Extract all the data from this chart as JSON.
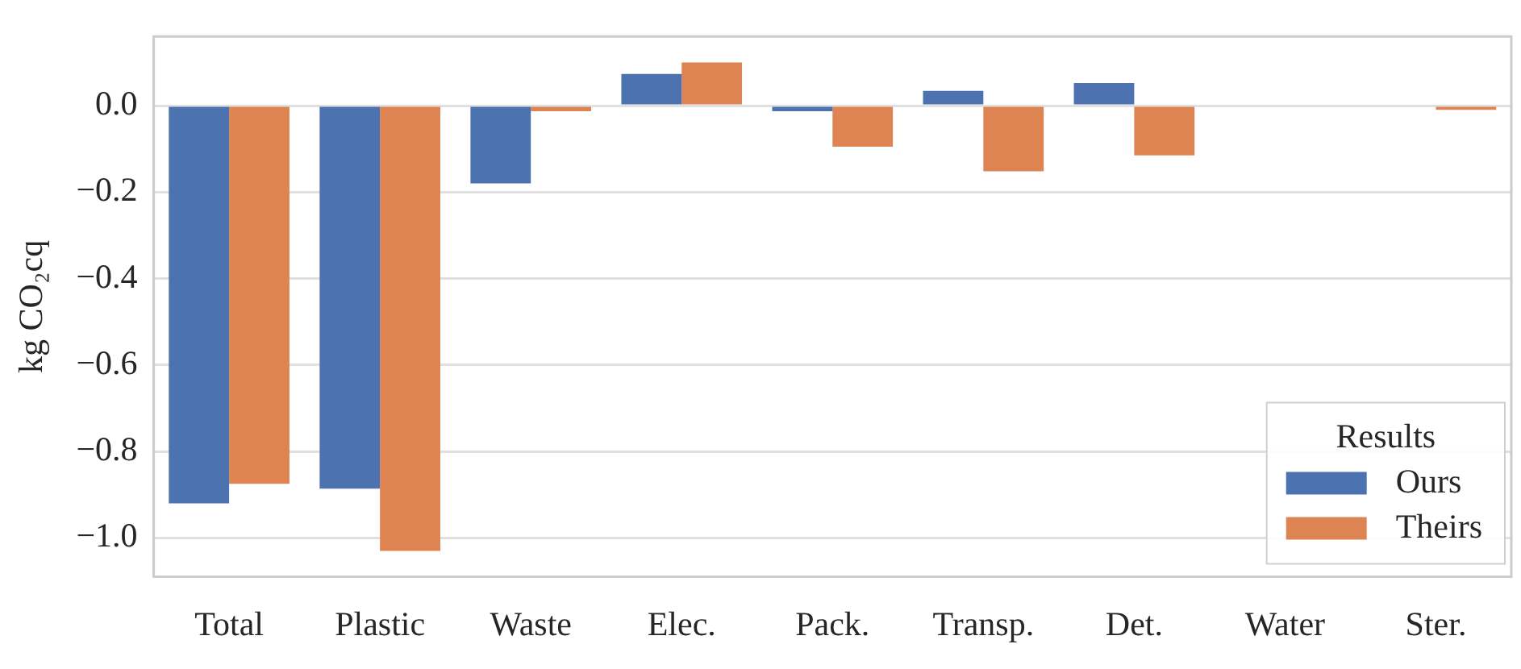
{
  "chart_data": {
    "type": "bar",
    "ylabel": "kg CO₂cq",
    "legend_title": "Results",
    "legend": "bottom right",
    "grid": "y",
    "categories": [
      "Total",
      "Plastic",
      "Waste",
      "Elec.",
      "Pack.",
      "Transp.",
      "Det.",
      "Water",
      "Ster."
    ],
    "series": [
      {
        "name": "Ours",
        "color": "#4c72b0",
        "values": [
          -0.92,
          -0.886,
          -0.18,
          0.073,
          -0.013,
          0.034,
          0.052,
          0.0,
          0.0
        ]
      },
      {
        "name": "Theirs",
        "color": "#dd8452",
        "values": [
          -0.875,
          -1.03,
          -0.013,
          0.1,
          -0.095,
          -0.152,
          -0.115,
          0.0,
          -0.01
        ]
      }
    ],
    "ylim": [
      -1.09,
      0.16
    ],
    "yticks": [
      {
        "value": 0,
        "label": "0.0"
      },
      -0.2,
      -0.4,
      -0.6,
      -0.8,
      {
        "value": -1,
        "label": "−1.0"
      }
    ]
  }
}
